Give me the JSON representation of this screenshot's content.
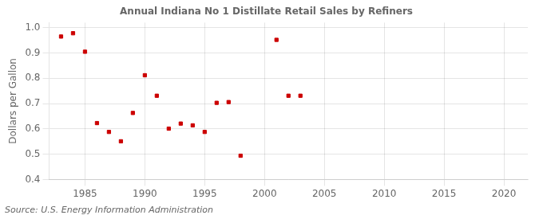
{
  "chart_data": {
    "type": "scatter",
    "title": "Annual Indiana No 1 Distillate Retail Sales by Refiners",
    "ylabel": "Dollars per Gallon",
    "annotations": [
      "Source: U.S. Energy Information Administration"
    ],
    "x": [
      1983,
      1984,
      1985,
      1986,
      1987,
      1988,
      1989,
      1990,
      1991,
      1992,
      1993,
      1994,
      1995,
      1996,
      1997,
      1998,
      2001,
      2002,
      2003
    ],
    "values": [
      0.965,
      0.978,
      0.905,
      0.623,
      0.588,
      0.551,
      0.663,
      0.812,
      0.731,
      0.601,
      0.621,
      0.614,
      0.588,
      0.703,
      0.706,
      0.494,
      0.952,
      0.731,
      0.731
    ],
    "color": "#cc0000",
    "marker": "square",
    "xlim": [
      1982,
      2022
    ],
    "xticks": [
      1985,
      1990,
      1995,
      2000,
      2005,
      2010,
      2015,
      2020
    ],
    "ylim": [
      0.4,
      1.02
    ],
    "yticks": [
      0.4,
      0.5,
      0.6,
      0.7,
      0.8,
      0.9,
      {
        "value": 1.0,
        "label": "1.0"
      }
    ],
    "grid": true
  }
}
